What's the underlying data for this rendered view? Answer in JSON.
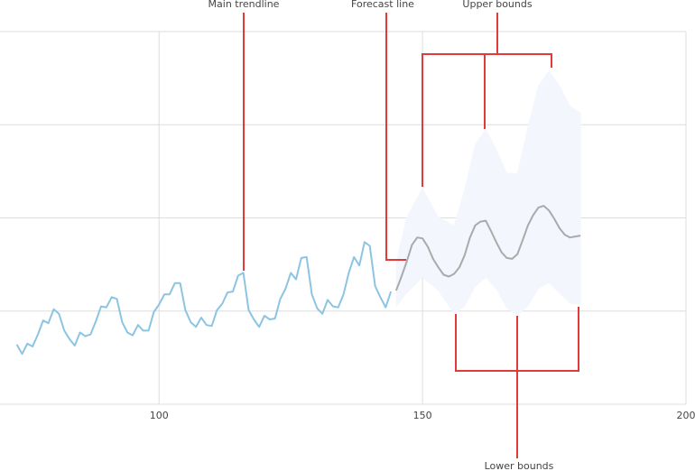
{
  "chart_data": {
    "type": "line",
    "annotations": {
      "main": "Main trendline",
      "forecast": "Forecast line",
      "upper": "Upper bounds",
      "lower": "Lower bounds"
    },
    "xlim": [
      69.4,
      200
    ],
    "xticks": [
      100,
      150,
      200
    ],
    "ylim": [
      0,
      400
    ],
    "yticks": [
      0,
      100,
      200,
      300,
      400
    ],
    "grid": true,
    "series": [
      {
        "kind": "line",
        "color": "#8cc4e2",
        "x": [
          73,
          74,
          75,
          76,
          77,
          78,
          79,
          80,
          81,
          82,
          83,
          84,
          85,
          86,
          87,
          88,
          89,
          90,
          91,
          92,
          93,
          94,
          95,
          96,
          97,
          98,
          99,
          100,
          101,
          102,
          103,
          104,
          105,
          106,
          107,
          108,
          109,
          110,
          111,
          112,
          113,
          114,
          115,
          116,
          117,
          118,
          119,
          120,
          121,
          122,
          123,
          124,
          125,
          126,
          127,
          128,
          129,
          130,
          131,
          132,
          133,
          134,
          135,
          136,
          137,
          138,
          139,
          140,
          141,
          142,
          143,
          144
        ],
        "values": [
          64,
          54,
          65,
          62,
          75,
          90,
          87,
          102,
          97,
          79,
          70,
          63,
          77,
          73,
          75,
          89,
          105,
          104,
          115,
          113,
          88,
          77,
          74,
          85,
          79,
          79,
          99,
          107,
          118,
          118,
          130,
          130,
          101,
          88,
          83,
          93,
          85,
          84,
          101,
          108,
          120,
          121,
          138,
          141,
          101,
          91,
          83,
          95,
          91,
          92,
          113,
          124,
          141,
          134,
          157,
          158,
          118,
          103,
          97,
          112,
          105,
          104,
          118,
          141,
          158,
          149,
          174,
          170,
          127,
          115,
          104,
          121
        ]
      },
      {
        "kind": "line",
        "color": "#aaaaaa",
        "x": [
          145,
          146,
          147,
          148,
          149,
          150,
          151,
          152,
          153,
          154,
          155,
          156,
          157,
          158,
          159,
          160,
          161,
          162,
          163,
          164,
          165,
          166,
          167,
          168,
          169,
          170,
          171,
          172,
          173,
          174,
          175,
          176,
          177,
          178,
          179,
          180
        ],
        "values": [
          122,
          137,
          153,
          171,
          179,
          178,
          169,
          156,
          147,
          139,
          137,
          140,
          147,
          160,
          179,
          192,
          196,
          197,
          186,
          174,
          163,
          157,
          156,
          161,
          176,
          192,
          203,
          211,
          213,
          208,
          199,
          189,
          182,
          179,
          180,
          181
        ]
      },
      {
        "kind": "band",
        "color": "#f3f6fd",
        "x": [
          145,
          147,
          150,
          153,
          156,
          158,
          160,
          162,
          164,
          166,
          168,
          170,
          172,
          174,
          176,
          178,
          180
        ],
        "upper": [
          153,
          201,
          232,
          201,
          192,
          231,
          279,
          295,
          274,
          248,
          248,
          298,
          342,
          358,
          342,
          320,
          313
        ],
        "lower": [
          105,
          119,
          136,
          122,
          97,
          105,
          126,
          136,
          124,
          103,
          95,
          105,
          124,
          130,
          119,
          108,
          107
        ]
      }
    ]
  }
}
